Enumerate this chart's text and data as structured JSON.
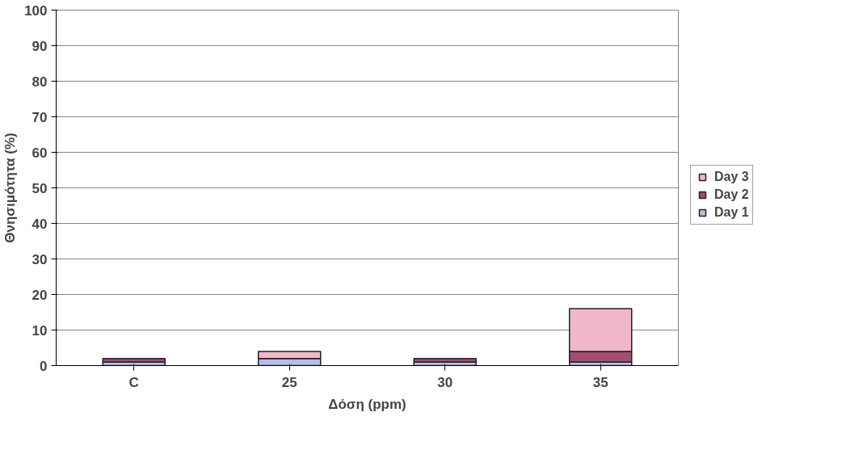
{
  "chart_data": {
    "type": "bar",
    "stacked": true,
    "xlabel": "Δόση (ppm)",
    "ylabel": "Θνησιμότητα (%)",
    "categories": [
      "C",
      "25",
      "30",
      "35"
    ],
    "series": [
      {
        "name": "Day 1",
        "color": "#b8bce8",
        "values": [
          1,
          2,
          1,
          1
        ]
      },
      {
        "name": "Day 2",
        "color": "#a0506e",
        "values": [
          1,
          0,
          1,
          3
        ]
      },
      {
        "name": "Day 3",
        "color": "#f0b8c8",
        "values": [
          0,
          2,
          0,
          12
        ]
      }
    ],
    "ylim": [
      0,
      100
    ],
    "yticks": [
      0,
      10,
      20,
      30,
      40,
      50,
      60,
      70,
      80,
      90,
      100
    ],
    "grid": "y",
    "legend": "right"
  }
}
